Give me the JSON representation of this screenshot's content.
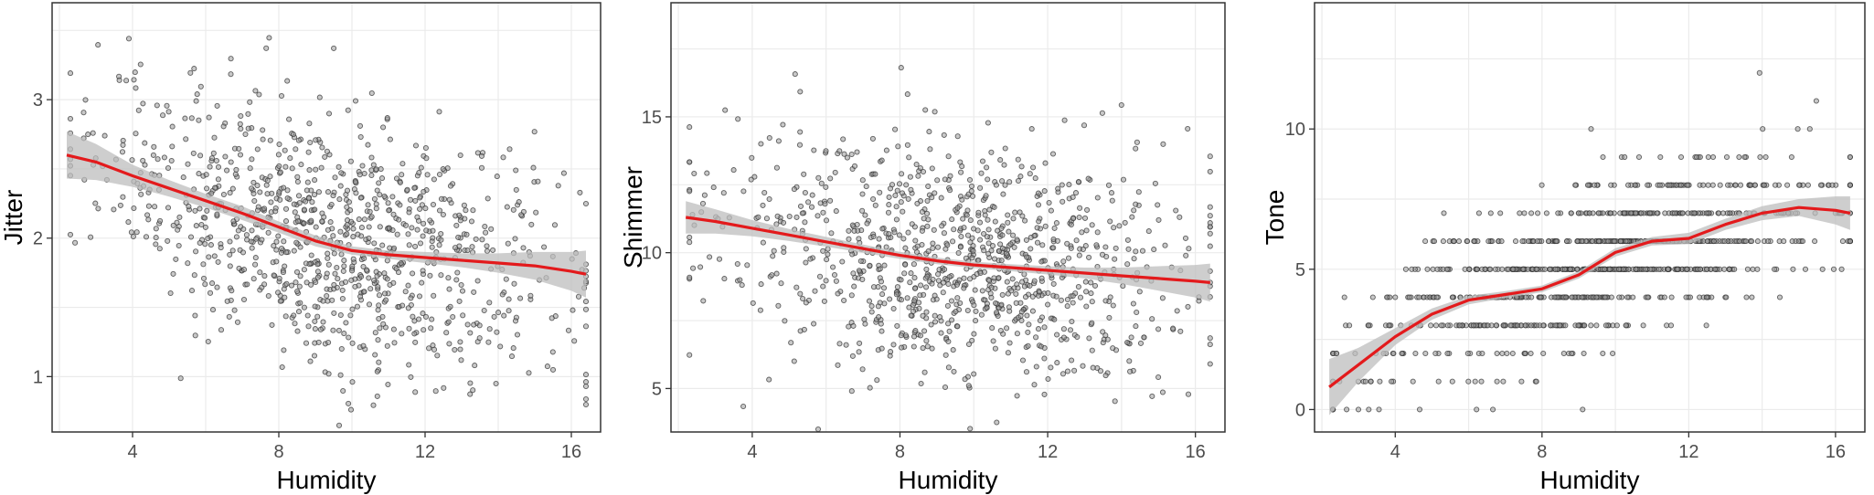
{
  "chart_data": [
    {
      "type": "scatter",
      "xlabel": "Humidity",
      "ylabel": "Jitter",
      "xlim": [
        1.8,
        16.8
      ],
      "ylim": [
        0.6,
        3.7
      ],
      "xticks": [
        4,
        8,
        12,
        16
      ],
      "yticks": [
        1,
        2,
        3
      ],
      "grid": true,
      "smooth": {
        "x": [
          2.2,
          3,
          4,
          5,
          6,
          7,
          8,
          9,
          10,
          11,
          12,
          13,
          14,
          15,
          16,
          16.4
        ],
        "y": [
          2.6,
          2.55,
          2.45,
          2.36,
          2.27,
          2.18,
          2.08,
          1.98,
          1.91,
          1.88,
          1.86,
          1.84,
          1.82,
          1.8,
          1.76,
          1.74
        ]
      },
      "band_halfwidth": [
        0.17,
        0.13,
        0.08,
        0.06,
        0.05,
        0.05,
        0.04,
        0.04,
        0.03,
        0.03,
        0.04,
        0.05,
        0.07,
        0.1,
        0.14,
        0.17
      ],
      "scatter_model": {
        "n": 1000,
        "x_mean": 9.5,
        "x_sd": 3.2,
        "noise_sd": 0.45
      }
    },
    {
      "type": "scatter",
      "xlabel": "Humidity",
      "ylabel": "Shimmer",
      "xlim": [
        1.8,
        16.8
      ],
      "ylim": [
        3.4,
        19.2
      ],
      "xticks": [
        4,
        8,
        12,
        16
      ],
      "yticks": [
        5,
        10,
        15
      ],
      "grid": true,
      "smooth": {
        "x": [
          2.2,
          3,
          4,
          5,
          6,
          7,
          8,
          9,
          10,
          11,
          12,
          13,
          14,
          15,
          16,
          16.4
        ],
        "y": [
          11.3,
          11.15,
          10.9,
          10.65,
          10.4,
          10.15,
          9.9,
          9.7,
          9.55,
          9.45,
          9.35,
          9.25,
          9.15,
          9.05,
          8.95,
          8.9
        ]
      },
      "band_halfwidth": [
        0.6,
        0.45,
        0.3,
        0.22,
        0.18,
        0.15,
        0.13,
        0.12,
        0.12,
        0.13,
        0.15,
        0.2,
        0.3,
        0.45,
        0.6,
        0.7
      ],
      "scatter_model": {
        "n": 1000,
        "x_mean": 9.5,
        "x_sd": 3.2,
        "noise_sd": 2.2
      }
    },
    {
      "type": "scatter",
      "xlabel": "Humidity",
      "ylabel": "Tone",
      "xlim": [
        1.8,
        16.8
      ],
      "ylim": [
        -0.8,
        14.5
      ],
      "xticks": [
        4,
        8,
        12,
        16
      ],
      "yticks": [
        0,
        5,
        10
      ],
      "grid": true,
      "smooth": {
        "x": [
          2.2,
          3,
          4,
          5,
          6,
          7,
          8,
          9,
          10,
          11,
          12,
          13,
          14,
          15,
          16,
          16.4
        ],
        "y": [
          0.8,
          1.6,
          2.6,
          3.4,
          3.9,
          4.1,
          4.3,
          4.8,
          5.6,
          6.0,
          6.1,
          6.6,
          7.0,
          7.2,
          7.1,
          7.0
        ]
      },
      "band_halfwidth": [
        1.0,
        0.6,
        0.3,
        0.2,
        0.15,
        0.12,
        0.12,
        0.13,
        0.15,
        0.15,
        0.2,
        0.2,
        0.25,
        0.3,
        0.5,
        0.6
      ],
      "scatter_model": {
        "n": 1000,
        "x_mean": 9.5,
        "x_sd": 3.2,
        "noise_sd": 1.4,
        "integer_y": true
      }
    }
  ],
  "colors": {
    "point_fill": "#9a9a9a",
    "point_stroke": "#333333",
    "smooth_line": "#e31a1c",
    "band": "#bdbdbd",
    "grid": "#ebebeb",
    "panel_border": "#333333"
  }
}
